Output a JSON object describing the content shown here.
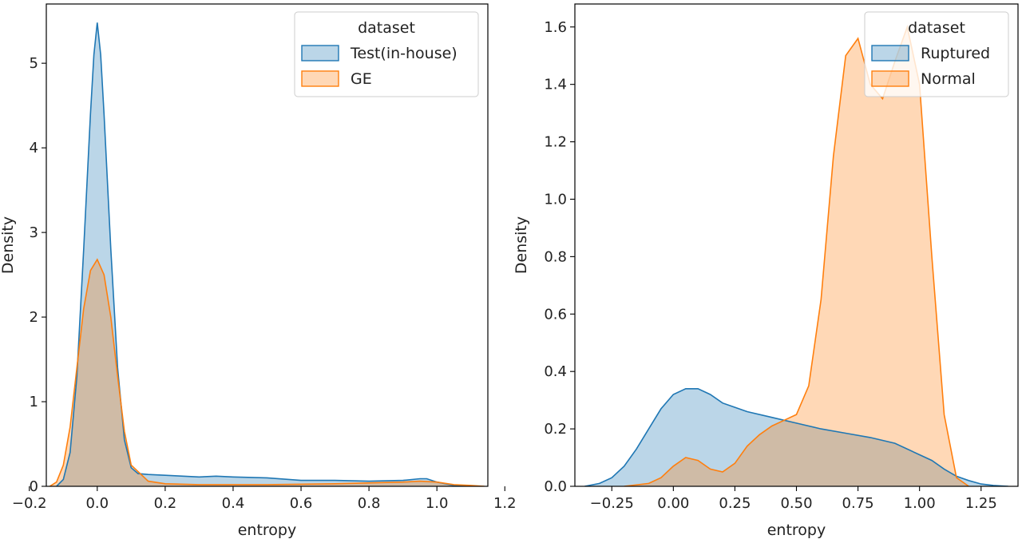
{
  "chart_data": [
    {
      "type": "area",
      "title": "",
      "xlabel": "entropy",
      "ylabel": "Density",
      "xlim": [
        -0.15,
        1.15
      ],
      "ylim": [
        0,
        5.7
      ],
      "xticks": [
        -0.2,
        0.0,
        0.2,
        0.4,
        0.6,
        0.8,
        1.0,
        1.2
      ],
      "xtick_labels": [
        "−0.2",
        "0.0",
        "0.2",
        "0.4",
        "0.6",
        "0.8",
        "1.0",
        "1.2"
      ],
      "yticks": [
        0,
        1,
        2,
        3,
        4,
        5
      ],
      "ytick_labels": [
        "0",
        "1",
        "2",
        "3",
        "4",
        "5"
      ],
      "grid": false,
      "legend": {
        "title": "dataset",
        "position": "top-right"
      },
      "series": [
        {
          "name": "Test(in-house)",
          "color": "#1f77b4",
          "x": [
            -0.12,
            -0.1,
            -0.08,
            -0.06,
            -0.04,
            -0.02,
            -0.01,
            0.0,
            0.01,
            0.02,
            0.04,
            0.06,
            0.08,
            0.1,
            0.12,
            0.15,
            0.2,
            0.3,
            0.35,
            0.4,
            0.5,
            0.6,
            0.7,
            0.8,
            0.9,
            0.95,
            0.97,
            1.0,
            1.05,
            1.1
          ],
          "y": [
            0.0,
            0.08,
            0.4,
            1.3,
            2.8,
            4.4,
            5.1,
            5.48,
            5.1,
            4.4,
            2.8,
            1.4,
            0.55,
            0.22,
            0.15,
            0.14,
            0.13,
            0.11,
            0.12,
            0.11,
            0.1,
            0.07,
            0.07,
            0.06,
            0.07,
            0.09,
            0.09,
            0.05,
            0.01,
            0.0
          ]
        },
        {
          "name": "GE",
          "color": "#ff7f0e",
          "x": [
            -0.14,
            -0.12,
            -0.1,
            -0.08,
            -0.06,
            -0.04,
            -0.02,
            0.0,
            0.02,
            0.04,
            0.06,
            0.08,
            0.1,
            0.15,
            0.2,
            0.3,
            0.5,
            0.7,
            0.9,
            0.95,
            1.0,
            1.05,
            1.1,
            1.14
          ],
          "y": [
            0.0,
            0.05,
            0.25,
            0.7,
            1.4,
            2.1,
            2.55,
            2.68,
            2.5,
            2.0,
            1.3,
            0.65,
            0.25,
            0.06,
            0.03,
            0.02,
            0.02,
            0.03,
            0.05,
            0.06,
            0.05,
            0.02,
            0.01,
            0.0
          ]
        }
      ]
    },
    {
      "type": "area",
      "title": "",
      "xlabel": "entropy",
      "ylabel": "Density",
      "xlim": [
        -0.4,
        1.4
      ],
      "ylim": [
        0,
        1.68
      ],
      "xticks": [
        -0.25,
        0.0,
        0.25,
        0.5,
        0.75,
        1.0,
        1.25
      ],
      "xtick_labels": [
        "−0.25",
        "0.00",
        "0.25",
        "0.50",
        "0.75",
        "1.00",
        "1.25"
      ],
      "yticks": [
        0.0,
        0.2,
        0.4,
        0.6,
        0.8,
        1.0,
        1.2,
        1.4,
        1.6
      ],
      "ytick_labels": [
        "0.0",
        "0.2",
        "0.4",
        "0.6",
        "0.8",
        "1.0",
        "1.2",
        "1.4",
        "1.6"
      ],
      "grid": false,
      "legend": {
        "title": "dataset",
        "position": "top-right"
      },
      "series": [
        {
          "name": "Ruptured",
          "color": "#1f77b4",
          "x": [
            -0.36,
            -0.3,
            -0.25,
            -0.2,
            -0.15,
            -0.1,
            -0.05,
            0.0,
            0.05,
            0.1,
            0.15,
            0.2,
            0.3,
            0.4,
            0.5,
            0.6,
            0.7,
            0.8,
            0.9,
            1.0,
            1.05,
            1.1,
            1.15,
            1.2,
            1.25,
            1.3,
            1.36
          ],
          "y": [
            0.0,
            0.01,
            0.03,
            0.07,
            0.13,
            0.2,
            0.27,
            0.32,
            0.34,
            0.34,
            0.32,
            0.29,
            0.26,
            0.24,
            0.22,
            0.2,
            0.185,
            0.17,
            0.15,
            0.11,
            0.09,
            0.06,
            0.035,
            0.02,
            0.008,
            0.003,
            0.0
          ]
        },
        {
          "name": "Normal",
          "color": "#ff7f0e",
          "x": [
            -0.2,
            -0.1,
            -0.05,
            0.0,
            0.05,
            0.1,
            0.15,
            0.2,
            0.25,
            0.3,
            0.35,
            0.4,
            0.45,
            0.5,
            0.55,
            0.6,
            0.65,
            0.7,
            0.75,
            0.8,
            0.85,
            0.9,
            0.95,
            1.0,
            1.05,
            1.1,
            1.15,
            1.2
          ],
          "y": [
            0.0,
            0.01,
            0.03,
            0.07,
            0.1,
            0.09,
            0.06,
            0.05,
            0.08,
            0.14,
            0.18,
            0.21,
            0.23,
            0.25,
            0.35,
            0.65,
            1.15,
            1.5,
            1.56,
            1.4,
            1.35,
            1.48,
            1.6,
            1.4,
            0.8,
            0.25,
            0.03,
            0.0
          ]
        }
      ]
    }
  ]
}
